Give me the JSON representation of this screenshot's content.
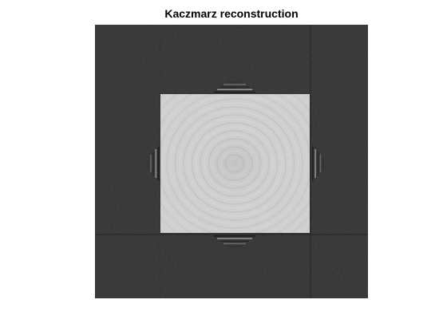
{
  "figure": {
    "title": "Kaczmarz reconstruction"
  },
  "image": {
    "description_kind": "grayscale tomographic reconstruction",
    "background_color": "#262626",
    "square_color": "#c9c9c9",
    "artifact_color_light": "#ededed",
    "artifact_color_dark": "#0a0a0a"
  }
}
